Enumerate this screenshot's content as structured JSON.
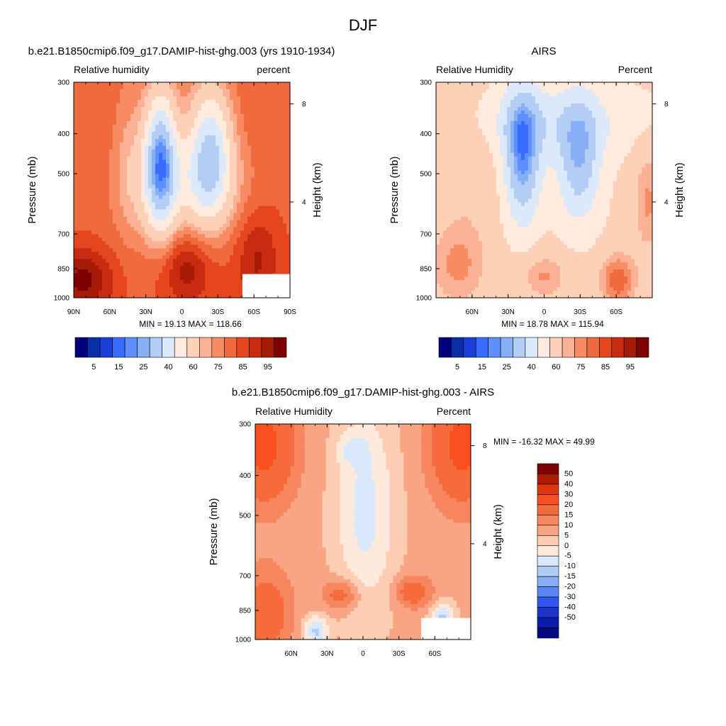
{
  "figure_title": "DJF",
  "colorbar_levels_rh": [
    "5",
    "15",
    "25",
    "40",
    "60",
    "75",
    "85",
    "95"
  ],
  "colorbar_levels_diff": [
    "50",
    "40",
    "30",
    "20",
    "15",
    "10",
    "5",
    "0",
    "-5",
    "-10",
    "-15",
    "-20",
    "-30",
    "-40",
    "-50"
  ],
  "colors_rh": [
    "#00007f",
    "#0a2daa",
    "#1a3fd9",
    "#3a6bff",
    "#5d8fff",
    "#86aff5",
    "#b3cdf4",
    "#dce9fb",
    "#ffebdd",
    "#fdd0b8",
    "#fbb193",
    "#f78c63",
    "#f06a40",
    "#e6461f",
    "#c92b10",
    "#a51b05",
    "#7c0000"
  ],
  "colors_diff": [
    "#7f0000",
    "#b01a00",
    "#e0360e",
    "#f9501f",
    "#f66b3c",
    "#f7865e",
    "#f9a583",
    "#fdcdb3",
    "#fdeadb",
    "#d9e8fb",
    "#afcbf8",
    "#88acf5",
    "#5a85f6",
    "#3057f0",
    "#1b35cc",
    "#0b1ca8",
    "#020a80"
  ],
  "chart_data": [
    {
      "type": "heatmap",
      "title": "b.e21.B1850cmip6.f09_g17.DAMIP-hist-ghg.003 (yrs 1910-1934)",
      "left_label": "Relative humidity",
      "right_label": "percent",
      "ylabel": "Pressure (mb)",
      "y2label": "Height (km)",
      "xlim": [
        90,
        -90
      ],
      "x_ticks": [
        "90N",
        "60N",
        "30N",
        "0",
        "30S",
        "60S",
        "90S"
      ],
      "y_ticks": [
        "300",
        "400",
        "500",
        "700",
        "850",
        "1000"
      ],
      "y2_ticks": [
        "8",
        "4"
      ],
      "min_label": "MIN =  19.13  MAX = 118.66",
      "min": 19.13,
      "max": 118.66
    },
    {
      "type": "heatmap",
      "title": "AIRS",
      "left_label": "Relative Humidity",
      "right_label": "Percent",
      "ylabel": "Pressure (mb)",
      "y2label": "Height (km)",
      "xlim": [
        90,
        -90
      ],
      "x_ticks": [
        "60N",
        "30N",
        "0",
        "30S",
        "60S"
      ],
      "y_ticks": [
        "300",
        "400",
        "500",
        "700",
        "850",
        "1000"
      ],
      "y2_ticks": [
        "8",
        "4"
      ],
      "min_label": "MIN =  18.78  MAX = 115.94",
      "min": 18.78,
      "max": 115.94
    },
    {
      "type": "heatmap",
      "title": "b.e21.B1850cmip6.f09_g17.DAMIP-hist-ghg.003 - AIRS",
      "left_label": "Relative Humidity",
      "right_label": "Percent",
      "ylabel": "Pressure (mb)",
      "y2label": "Height (km)",
      "xlim": [
        90,
        -90
      ],
      "x_ticks": [
        "60N",
        "30N",
        "0",
        "30S",
        "60S"
      ],
      "y_ticks": [
        "300",
        "400",
        "500",
        "700",
        "850",
        "1000"
      ],
      "y2_ticks": [
        "8",
        "4"
      ],
      "min_label": "MIN = -16.32  MAX =  49.99",
      "min": -16.32,
      "max": 49.99
    }
  ]
}
